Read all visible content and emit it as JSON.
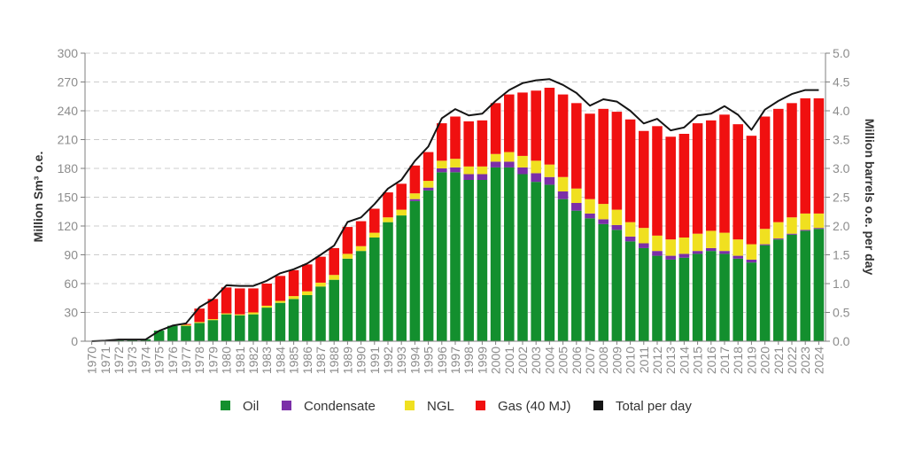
{
  "chart_data": {
    "type": "bar",
    "stacked": true,
    "colors": {
      "oil": "#138f2e",
      "condensate": "#7b2fa8",
      "ngl": "#f0e020",
      "gas": "#f01010",
      "total": "#151515",
      "grid": "#cccccc",
      "axis": "#7f7f7f"
    },
    "ylabel_left": "Million Sm³ o.e.",
    "ylabel_right": "Million barrels o.e. per day",
    "ylim_left": [
      0,
      300
    ],
    "ylim_right": [
      0,
      5.0
    ],
    "yticks_left": [
      "0",
      "30",
      "60",
      "90",
      "120",
      "150",
      "180",
      "210",
      "240",
      "270",
      "300"
    ],
    "yticks_right": [
      "0.0",
      "0.5",
      "1.0",
      "1.5",
      "2.0",
      "2.5",
      "3.0",
      "3.5",
      "4.0",
      "4.5",
      "5.0"
    ],
    "legend_position": "bottom",
    "legend": [
      {
        "key": "oil",
        "label": "Oil"
      },
      {
        "key": "condensate",
        "label": "Condensate"
      },
      {
        "key": "ngl",
        "label": "NGL"
      },
      {
        "key": "gas",
        "label": "Gas (40 MJ)"
      },
      {
        "key": "total",
        "label": "Total per day"
      }
    ],
    "categories": [
      "1970",
      "1971",
      "1972",
      "1973",
      "1974",
      "1975",
      "1976",
      "1977",
      "1978",
      "1979",
      "1980",
      "1981",
      "1982",
      "1983",
      "1984",
      "1985",
      "1986",
      "1987",
      "1988",
      "1989",
      "1990",
      "1991",
      "1992",
      "1993",
      "1994",
      "1995",
      "1996",
      "1997",
      "1998",
      "1999",
      "2000",
      "2001",
      "2002",
      "2003",
      "2004",
      "2005",
      "2006",
      "2007",
      "2008",
      "2009",
      "2010",
      "2011",
      "2012",
      "2013",
      "2014",
      "2015",
      "2016",
      "2017",
      "2018",
      "2019",
      "2020",
      "2021",
      "2022",
      "2023",
      "2024"
    ],
    "series": [
      {
        "key": "oil",
        "name": "Oil",
        "values": [
          0,
          0.4,
          1.9,
          1.9,
          2.0,
          11,
          16,
          16,
          19,
          22,
          28,
          27,
          28,
          35,
          40,
          44,
          48,
          57,
          64,
          86,
          94,
          108,
          124,
          131,
          146,
          157,
          176,
          176,
          168,
          168,
          181,
          181,
          174,
          166,
          163,
          148,
          136,
          128,
          122,
          116,
          104,
          97,
          89,
          85,
          87,
          91,
          94,
          91,
          86,
          82,
          100,
          106,
          111,
          115,
          117
        ]
      },
      {
        "key": "condensate",
        "name": "Condensate",
        "values": [
          0,
          0,
          0,
          0,
          0,
          0,
          0,
          0,
          0,
          0,
          0,
          0,
          0,
          0,
          0,
          0,
          0,
          0,
          0,
          0,
          0,
          0,
          0,
          0,
          2,
          3,
          4,
          5,
          6,
          6,
          6,
          6,
          7,
          9,
          8,
          8,
          8,
          5,
          5,
          5,
          5,
          5,
          5,
          4,
          4,
          3,
          3,
          3,
          3,
          3,
          1,
          1,
          1,
          1,
          1
        ]
      },
      {
        "key": "ngl",
        "name": "NGL",
        "values": [
          0,
          0,
          0,
          0,
          0,
          0,
          0,
          1,
          1,
          1,
          1,
          1,
          2,
          2,
          2,
          3,
          4,
          4,
          5,
          5,
          5,
          5,
          5,
          6,
          6,
          7,
          8,
          9,
          8,
          8,
          8,
          10,
          12,
          13,
          13,
          15,
          15,
          15,
          16,
          16,
          15,
          16,
          16,
          17,
          17,
          18,
          18,
          19,
          17,
          16,
          16,
          17,
          17,
          17,
          15
        ]
      },
      {
        "key": "gas",
        "name": "Gas (40 MJ)",
        "values": [
          0,
          0,
          0,
          0,
          0,
          0,
          0,
          1,
          14,
          21,
          27,
          27,
          25,
          23,
          26,
          27,
          28,
          27,
          28,
          28,
          26,
          25,
          26,
          27,
          29,
          30,
          39,
          44,
          47,
          48,
          53,
          60,
          66,
          73,
          80,
          86,
          89,
          89,
          99,
          102,
          107,
          101,
          114,
          107,
          108,
          115,
          115,
          123,
          120,
          113,
          117,
          118,
          119,
          120,
          120
        ]
      },
      {
        "key": "total",
        "name": "Total per day",
        "values": [
          0,
          0.01,
          0.03,
          0.03,
          0.03,
          0.18,
          0.27,
          0.31,
          0.59,
          0.73,
          0.97,
          0.96,
          0.96,
          1.05,
          1.18,
          1.25,
          1.35,
          1.5,
          1.66,
          2.07,
          2.15,
          2.38,
          2.65,
          2.8,
          3.13,
          3.38,
          3.87,
          4.03,
          3.92,
          3.95,
          4.17,
          4.36,
          4.48,
          4.53,
          4.55,
          4.45,
          4.31,
          4.09,
          4.2,
          4.16,
          4.0,
          3.78,
          3.86,
          3.66,
          3.71,
          3.92,
          3.95,
          4.08,
          3.93,
          3.67,
          4.02,
          4.17,
          4.29,
          4.36,
          4.36
        ]
      }
    ]
  }
}
